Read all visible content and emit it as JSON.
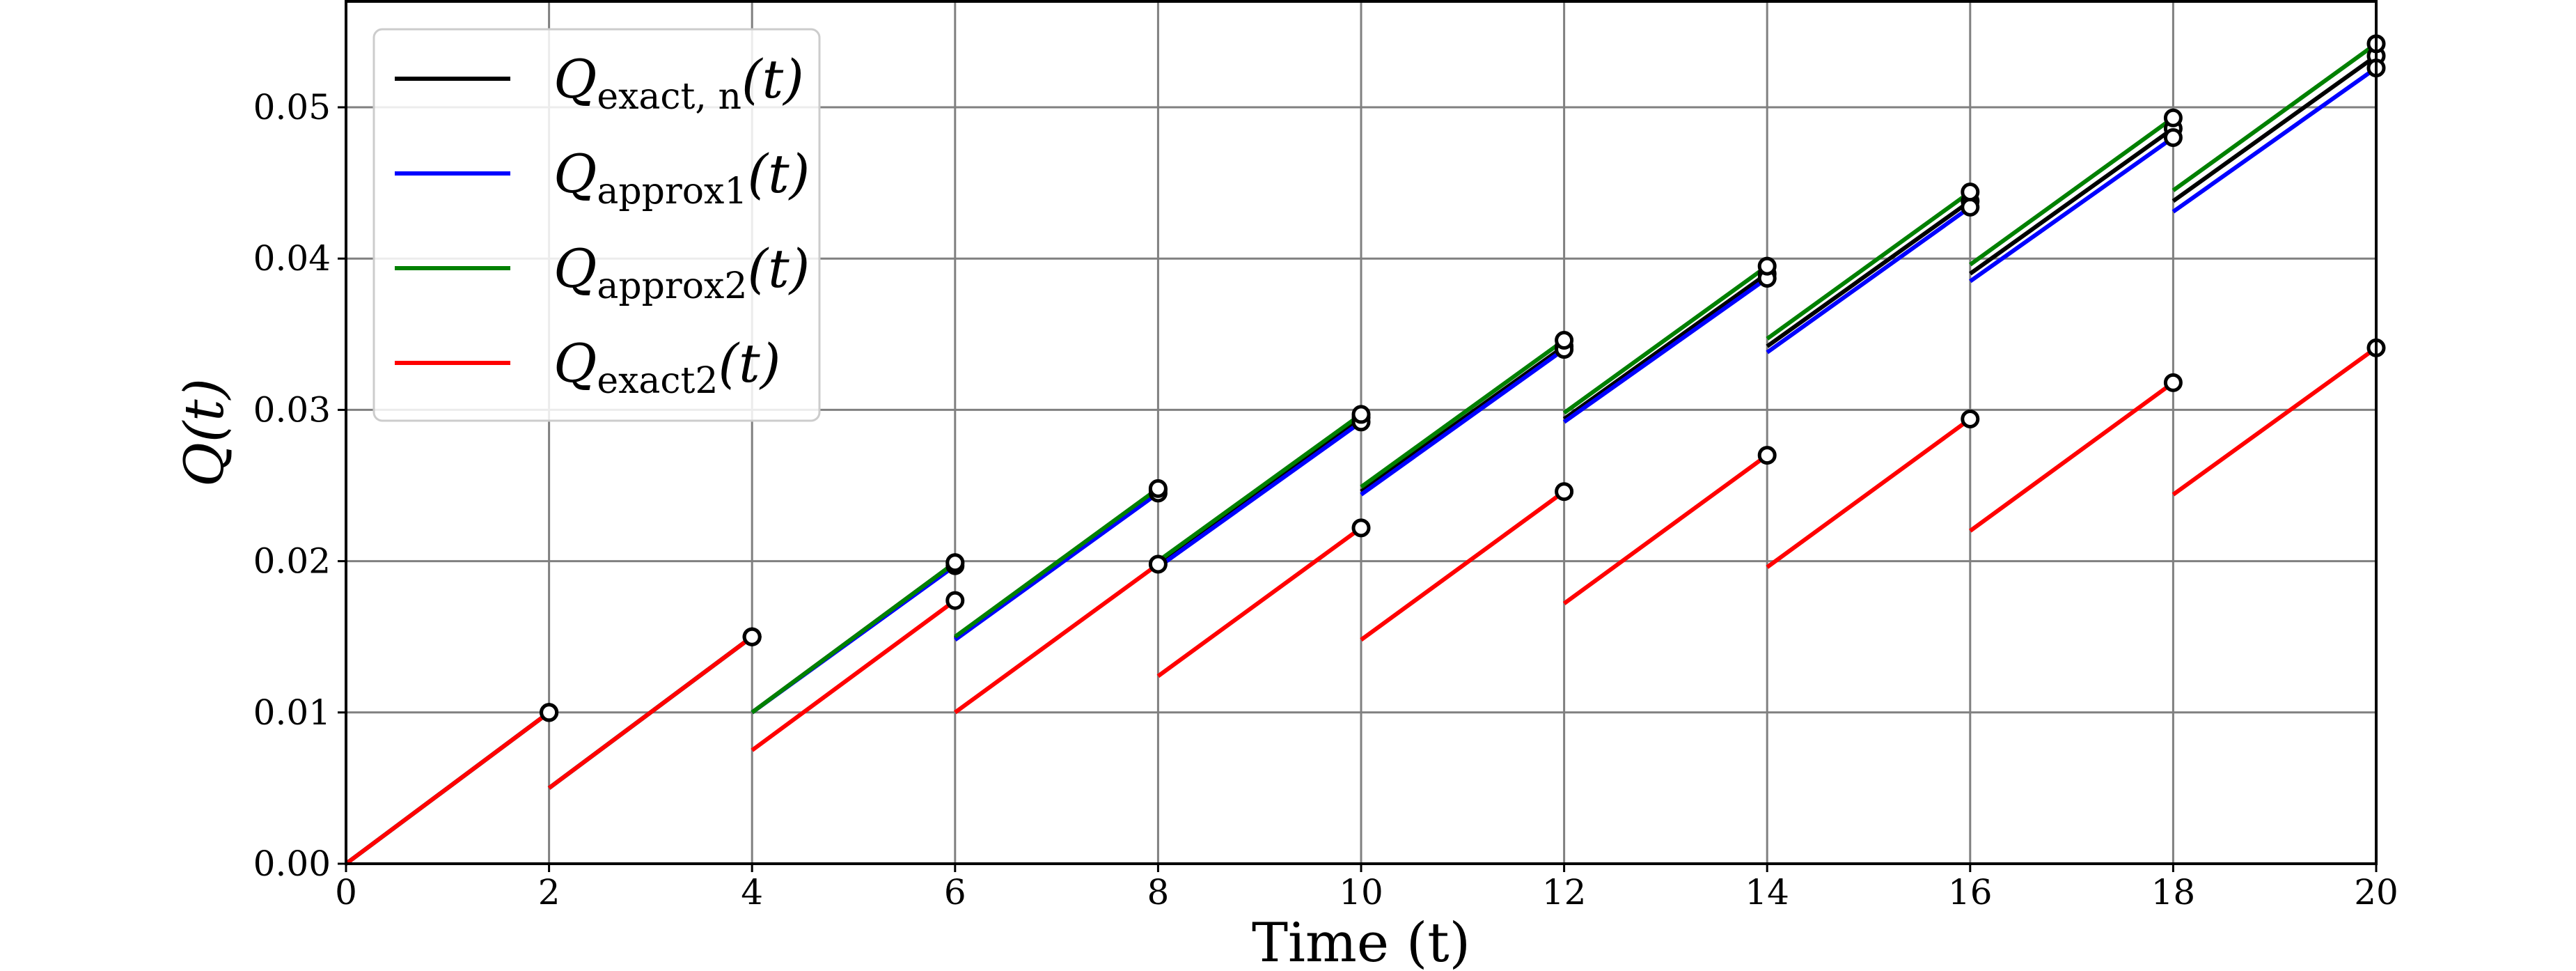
{
  "chart_data": {
    "type": "line",
    "xlabel": "Time (t)",
    "ylabel": "Q(t)",
    "xlim": [
      0,
      20
    ],
    "ylim": [
      0,
      0.057
    ],
    "xticks": [
      "0",
      "2",
      "4",
      "6",
      "8",
      "10",
      "12",
      "14",
      "16",
      "18",
      "20"
    ],
    "yticks": [
      "0.00",
      "0.01",
      "0.02",
      "0.03",
      "0.04",
      "0.05"
    ],
    "grid": true,
    "legend_position": "top-left",
    "series": [
      {
        "name": "Q_exact,n(t)",
        "legend": {
          "base": "Q",
          "sub": "exact, n",
          "arg": "(t)"
        },
        "color": "#000000",
        "segments": [
          {
            "x": [
              0,
              2
            ],
            "y": [
              0.0,
              0.01
            ]
          },
          {
            "x": [
              2,
              4
            ],
            "y": [
              0.005,
              0.015
            ]
          },
          {
            "x": [
              4,
              6
            ],
            "y": [
              0.01,
              0.0199
            ]
          },
          {
            "x": [
              6,
              8
            ],
            "y": [
              0.0149,
              0.0247
            ]
          },
          {
            "x": [
              8,
              10
            ],
            "y": [
              0.0198,
              0.0295
            ]
          },
          {
            "x": [
              10,
              12
            ],
            "y": [
              0.0246,
              0.0342
            ]
          },
          {
            "x": [
              12,
              14
            ],
            "y": [
              0.0294,
              0.039
            ]
          },
          {
            "x": [
              14,
              16
            ],
            "y": [
              0.0342,
              0.0438
            ]
          },
          {
            "x": [
              16,
              18
            ],
            "y": [
              0.039,
              0.0486
            ]
          },
          {
            "x": [
              18,
              20
            ],
            "y": [
              0.0438,
              0.0534
            ]
          }
        ]
      },
      {
        "name": "Q_approx1(t)",
        "legend": {
          "base": "Q",
          "sub": "approx1",
          "arg": "(t)"
        },
        "color": "#0000ff",
        "segments": [
          {
            "x": [
              0,
              2
            ],
            "y": [
              0.0,
              0.01
            ]
          },
          {
            "x": [
              2,
              4
            ],
            "y": [
              0.005,
              0.015
            ]
          },
          {
            "x": [
              4,
              6
            ],
            "y": [
              0.01,
              0.0197
            ]
          },
          {
            "x": [
              6,
              8
            ],
            "y": [
              0.0148,
              0.0245
            ]
          },
          {
            "x": [
              8,
              10
            ],
            "y": [
              0.0196,
              0.0292
            ]
          },
          {
            "x": [
              10,
              12
            ],
            "y": [
              0.0244,
              0.034
            ]
          },
          {
            "x": [
              12,
              14
            ],
            "y": [
              0.0292,
              0.0387
            ]
          },
          {
            "x": [
              14,
              16
            ],
            "y": [
              0.0338,
              0.0434
            ]
          },
          {
            "x": [
              16,
              18
            ],
            "y": [
              0.0385,
              0.048
            ]
          },
          {
            "x": [
              18,
              20
            ],
            "y": [
              0.0431,
              0.0526
            ]
          }
        ]
      },
      {
        "name": "Q_approx2(t)",
        "legend": {
          "base": "Q",
          "sub": "approx2",
          "arg": "(t)"
        },
        "color": "#008000",
        "segments": [
          {
            "x": [
              0,
              2
            ],
            "y": [
              0.0,
              0.01
            ]
          },
          {
            "x": [
              2,
              4
            ],
            "y": [
              0.005,
              0.015
            ]
          },
          {
            "x": [
              4,
              6
            ],
            "y": [
              0.01,
              0.0199
            ]
          },
          {
            "x": [
              6,
              8
            ],
            "y": [
              0.015,
              0.0248
            ]
          },
          {
            "x": [
              8,
              10
            ],
            "y": [
              0.02,
              0.0297
            ]
          },
          {
            "x": [
              10,
              12
            ],
            "y": [
              0.0249,
              0.0346
            ]
          },
          {
            "x": [
              12,
              14
            ],
            "y": [
              0.0298,
              0.0395
            ]
          },
          {
            "x": [
              14,
              16
            ],
            "y": [
              0.0347,
              0.0444
            ]
          },
          {
            "x": [
              16,
              18
            ],
            "y": [
              0.0396,
              0.0493
            ]
          },
          {
            "x": [
              18,
              20
            ],
            "y": [
              0.0445,
              0.0542
            ]
          }
        ]
      },
      {
        "name": "Q_exact2(t)",
        "legend": {
          "base": "Q",
          "sub": "exact2",
          "arg": "(t)"
        },
        "color": "#ff0000",
        "segments": [
          {
            "x": [
              0,
              2
            ],
            "y": [
              0.0,
              0.01
            ]
          },
          {
            "x": [
              2,
              4
            ],
            "y": [
              0.005,
              0.015
            ]
          },
          {
            "x": [
              4,
              6
            ],
            "y": [
              0.0075,
              0.0174
            ]
          },
          {
            "x": [
              6,
              8
            ],
            "y": [
              0.01,
              0.0198
            ]
          },
          {
            "x": [
              8,
              10
            ],
            "y": [
              0.0124,
              0.0222
            ]
          },
          {
            "x": [
              10,
              12
            ],
            "y": [
              0.0148,
              0.0246
            ]
          },
          {
            "x": [
              12,
              14
            ],
            "y": [
              0.0172,
              0.027
            ]
          },
          {
            "x": [
              14,
              16
            ],
            "y": [
              0.0196,
              0.0294
            ]
          },
          {
            "x": [
              16,
              18
            ],
            "y": [
              0.022,
              0.0318
            ]
          },
          {
            "x": [
              18,
              20
            ],
            "y": [
              0.0244,
              0.0341
            ]
          }
        ]
      }
    ]
  }
}
